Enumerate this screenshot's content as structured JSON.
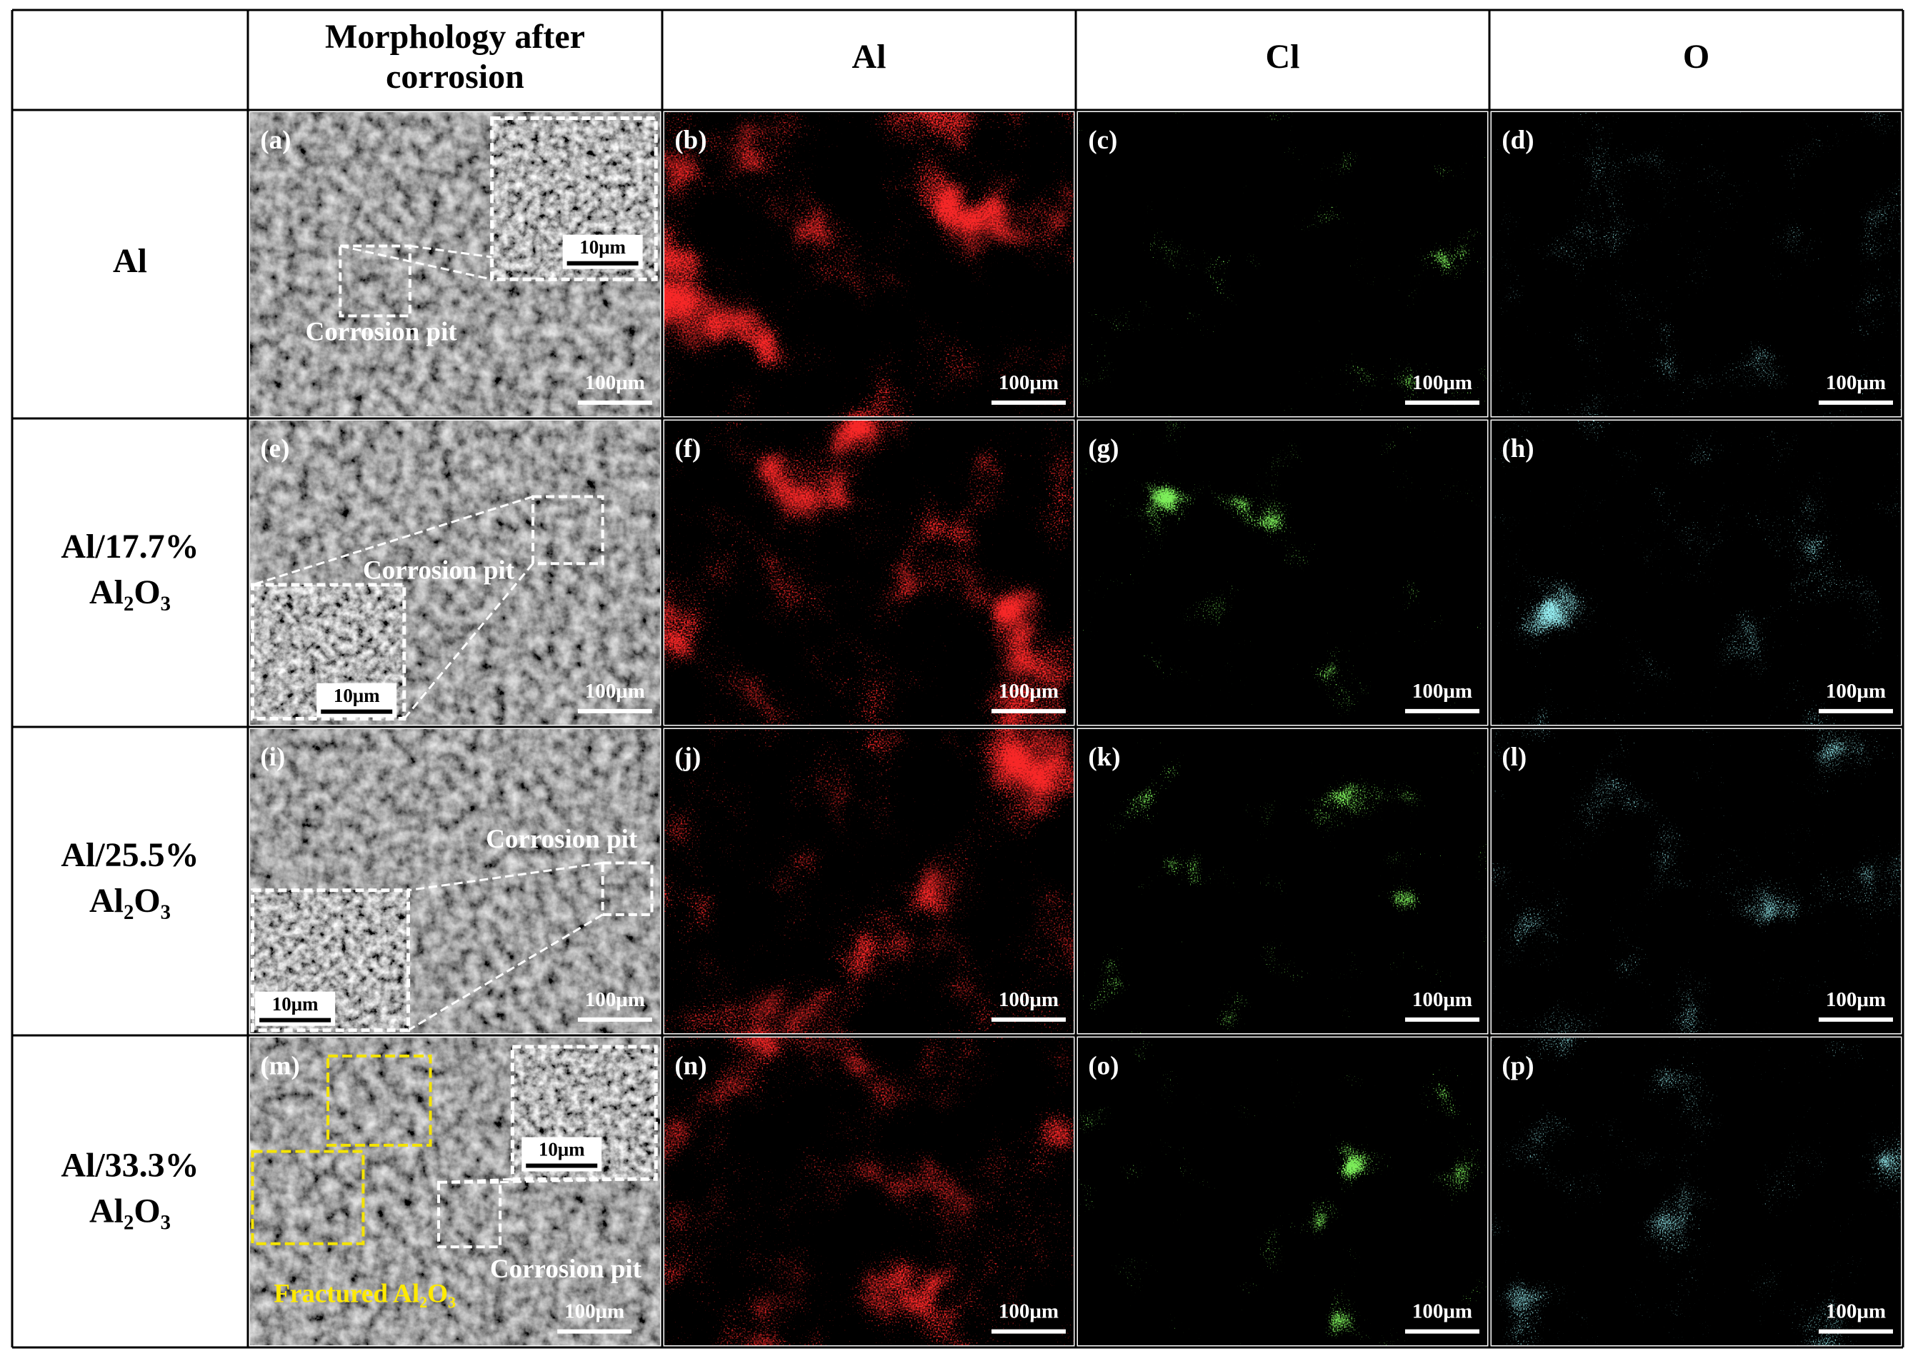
{
  "header": {
    "columns": [
      [
        "Morphology after",
        "corrosion"
      ],
      [
        "Al"
      ],
      [
        "Cl"
      ],
      [
        "O"
      ]
    ]
  },
  "rows": [
    {
      "label": [
        "Al"
      ],
      "panels": [
        {
          "label": "(a)",
          "scale_bar": "100μm",
          "inset_scale_bar": "10μm",
          "annotations": [
            "Corrosion pit"
          ]
        },
        {
          "label": "(b)",
          "scale_bar": "100μm"
        },
        {
          "label": "(c)",
          "scale_bar": "100μm"
        },
        {
          "label": "(d)",
          "scale_bar": "100μm"
        }
      ]
    },
    {
      "label": [
        "Al/17.7%",
        "Al₂O₃"
      ],
      "panels": [
        {
          "label": "(e)",
          "scale_bar": "100μm",
          "inset_scale_bar": "10μm",
          "annotations": [
            "Corrosion pit"
          ]
        },
        {
          "label": "(f)",
          "scale_bar": "100μm"
        },
        {
          "label": "(g)",
          "scale_bar": "100μm"
        },
        {
          "label": "(h)",
          "scale_bar": "100μm"
        }
      ]
    },
    {
      "label": [
        "Al/25.5%",
        "Al₂O₃"
      ],
      "panels": [
        {
          "label": "(i)",
          "scale_bar": "100μm",
          "inset_scale_bar": "10μm",
          "annotations": [
            "Corrosion pit"
          ]
        },
        {
          "label": "(j)",
          "scale_bar": "100μm"
        },
        {
          "label": "(k)",
          "scale_bar": "100μm"
        },
        {
          "label": "(l)",
          "scale_bar": "100μm"
        }
      ]
    },
    {
      "label": [
        "Al/33.3%",
        "Al₂O₃"
      ],
      "panels": [
        {
          "label": "(m)",
          "scale_bar": "100μm",
          "inset_scale_bar": "10μm",
          "annotations": [
            "Corrosion pit",
            "Fractured Al₂O₃"
          ]
        },
        {
          "label": "(n)",
          "scale_bar": "100μm"
        },
        {
          "label": "(o)",
          "scale_bar": "100μm"
        },
        {
          "label": "(p)",
          "scale_bar": "100μm"
        }
      ]
    }
  ]
}
